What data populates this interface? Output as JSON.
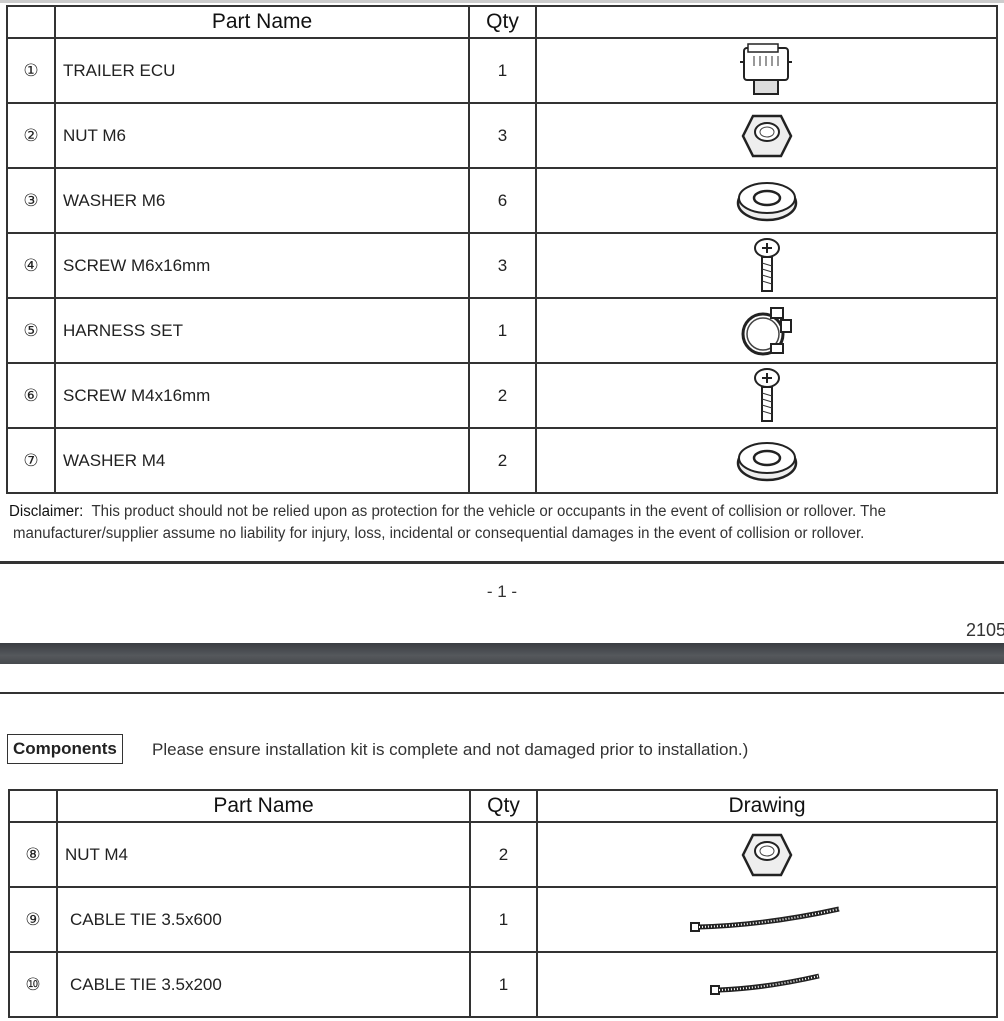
{
  "page1": {
    "table": {
      "headers": {
        "num": "",
        "name": "Part Name",
        "qty": "Qty",
        "drawing": ""
      },
      "rows": [
        {
          "num": "①",
          "name": "TRAILER ECU",
          "qty": "1",
          "icon": "ecu-icon"
        },
        {
          "num": "②",
          "name": "NUT M6",
          "qty": "3",
          "icon": "nut-icon"
        },
        {
          "num": "③",
          "name": "WASHER M6",
          "qty": "6",
          "icon": "washer-icon"
        },
        {
          "num": "④",
          "name": "SCREW M6x16mm",
          "qty": "3",
          "icon": "screw-icon"
        },
        {
          "num": "⑤",
          "name": "HARNESS SET",
          "qty": "1",
          "icon": "harness-icon"
        },
        {
          "num": "⑥",
          "name": "SCREW M4x16mm",
          "qty": "2",
          "icon": "screw-icon"
        },
        {
          "num": "⑦",
          "name": "WASHER M4",
          "qty": "2",
          "icon": "washer-icon"
        }
      ]
    },
    "disclaimer": {
      "label": "Disclaimer:",
      "line1": "This product should not be relied upon as protection for the vehicle or occupants in the event of collision or rollover. The",
      "line2": "manufacturer/supplier assume no liability for injury, loss, incidental or consequential damages in the event of collision or rollover."
    },
    "page_number": "- 1 -",
    "doc_code": "2105"
  },
  "page2": {
    "components_label": "Components",
    "components_note": "Please ensure installation kit is complete and not damaged prior to installation.)",
    "table": {
      "headers": {
        "num": "",
        "name": "Part Name",
        "qty": "Qty",
        "drawing": "Drawing"
      },
      "rows": [
        {
          "num": "⑧",
          "name": "NUT M4",
          "qty": "2",
          "icon": "nut-icon"
        },
        {
          "num": "⑨",
          "name": "CABLE TIE 3.5x600",
          "qty": "1",
          "icon": "cable-tie-icon"
        },
        {
          "num": "⑩",
          "name": "CABLE TIE 3.5x200",
          "qty": "1",
          "icon": "cable-tie-icon"
        }
      ]
    }
  }
}
